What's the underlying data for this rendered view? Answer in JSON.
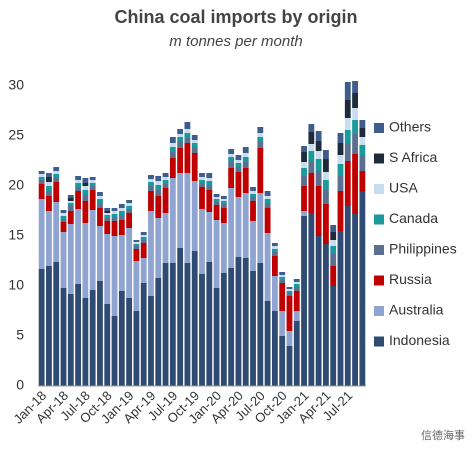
{
  "chart_data": {
    "type": "stacked_bar",
    "title": "China coal imports by origin",
    "subtitle": "m tonnes per month",
    "watermark": "信德海事",
    "categories": [
      "Jan-18",
      null,
      null,
      "Apr-18",
      null,
      null,
      "Jul-18",
      null,
      null,
      "Oct-18",
      null,
      null,
      "Jan-19",
      null,
      null,
      "Apr-19",
      null,
      null,
      "Jul-19",
      null,
      null,
      "Oct-19",
      null,
      null,
      "Jan-20",
      null,
      null,
      "Apr-20",
      null,
      null,
      "Jul-20",
      null,
      null,
      "Oct-20",
      null,
      null,
      "Jan-21",
      null,
      null,
      "Apr-21",
      null,
      null,
      "Jul-21",
      null,
      null
    ],
    "series": [
      {
        "name": "Indonesia",
        "color": "#2f4b73",
        "values": [
          11.7,
          12.0,
          12.4,
          9.8,
          9.2,
          10.2,
          8.8,
          9.6,
          10.5,
          8.2,
          7.0,
          9.5,
          8.8,
          7.5,
          10.3,
          9.0,
          10.8,
          12.3,
          12.3,
          13.8,
          12.3,
          13.5,
          11.2,
          12.4,
          9.8,
          11.3,
          11.8,
          12.9,
          12.8,
          11.5,
          12.3,
          8.5,
          7.5,
          5.0,
          4.0,
          6.5,
          17.0,
          17.3,
          15.0,
          14.2,
          10.0,
          15.5,
          18.0,
          17.2,
          19.5
        ]
      },
      {
        "name": "Australia",
        "color": "#8fa4d0",
        "values": [
          7.0,
          5.5,
          6.0,
          5.6,
          7.0,
          7.5,
          7.5,
          8.0,
          5.5,
          7.0,
          8.0,
          5.6,
          7.0,
          5.0,
          2.5,
          8.5,
          6.0,
          5.0,
          8.5,
          7.5,
          9.0,
          7.0,
          6.5,
          5.0,
          6.8,
          5.0,
          8.0,
          6.0,
          6.5,
          5.0,
          7.0,
          6.8,
          3.5,
          2.5,
          1.5,
          1.0,
          0.5,
          0,
          0,
          0,
          0,
          0,
          0,
          0,
          0
        ]
      },
      {
        "name": "Russia",
        "color": "#c00000",
        "values": [
          1.5,
          1.5,
          2.0,
          1.0,
          1.3,
          1.8,
          2.2,
          2.0,
          1.8,
          1.3,
          1.5,
          1.5,
          1.5,
          1.2,
          1.5,
          2.0,
          2.2,
          2.5,
          2.0,
          2.5,
          3.0,
          2.8,
          2.2,
          2.2,
          1.5,
          1.5,
          2.0,
          2.5,
          2.5,
          2.0,
          4.5,
          2.5,
          2.0,
          2.8,
          3.5,
          2.0,
          2.5,
          4.0,
          5.0,
          4.0,
          2.0,
          4.0,
          4.5,
          6.0,
          2.0
        ]
      },
      {
        "name": "Philippines",
        "color": "#5b7090",
        "values": [
          0.4,
          0.5,
          0.4,
          0.3,
          0.5,
          0.4,
          0.6,
          0.4,
          0.5,
          0.3,
          0.4,
          0.5,
          0.4,
          0.3,
          0.3,
          0.5,
          0.6,
          0.4,
          0.6,
          0.7,
          0.5,
          0.6,
          0.4,
          0.5,
          0.3,
          0.4,
          0.6,
          0.5,
          0.6,
          0.4,
          0.6,
          0.5,
          0.4,
          0.3,
          0.3,
          0.4,
          1.0,
          1.2,
          1.5,
          1.4,
          1.2,
          1.5,
          1.8,
          2.0,
          1.6
        ]
      },
      {
        "name": "Canada",
        "color": "#1a9a9a",
        "values": [
          0.3,
          0.5,
          0.4,
          0.3,
          0.3,
          0.4,
          0.5,
          0.3,
          0.4,
          0.3,
          0.3,
          0.4,
          0.3,
          0.2,
          0.3,
          0.4,
          0.5,
          0.4,
          0.5,
          0.4,
          0.5,
          0.4,
          0.3,
          0.4,
          0.3,
          0.3,
          0.5,
          0.4,
          0.5,
          0.3,
          0.5,
          0.4,
          0.3,
          0.3,
          0.2,
          0.3,
          0.8,
          1.0,
          1.2,
          1.0,
          0.8,
          1.2,
          1.3,
          1.4,
          1.0
        ]
      },
      {
        "name": "USA",
        "color": "#c9ddf1",
        "values": [
          0.3,
          0.4,
          0.3,
          0.3,
          0.2,
          0.3,
          0.4,
          0.3,
          0.3,
          0.2,
          0.3,
          0.3,
          0.3,
          0.2,
          0.2,
          0.3,
          0.4,
          0.3,
          0.4,
          0.3,
          0.4,
          0.3,
          0.3,
          0.3,
          0.2,
          0.2,
          0.3,
          0.3,
          0.4,
          0.3,
          0.4,
          0.3,
          0.3,
          0.2,
          0.2,
          0.2,
          0.6,
          0.7,
          0.8,
          0.8,
          0.6,
          0.9,
          1.2,
          1.2,
          0.8
        ]
      },
      {
        "name": "S Africa",
        "color": "#1d2b3b",
        "values": [
          0,
          0.5,
          0,
          0,
          0.3,
          0,
          0.3,
          0,
          0,
          0.2,
          0,
          0,
          0,
          0,
          0,
          0,
          0,
          0,
          0,
          0,
          0,
          0,
          0,
          0,
          0,
          0,
          0,
          0,
          0,
          0,
          0,
          0,
          0,
          0,
          0,
          0,
          1.0,
          1.2,
          1.0,
          1.3,
          0.8,
          1.2,
          1.8,
          1.5,
          0.9
        ]
      },
      {
        "name": "Others",
        "color": "#3e5c8c",
        "values": [
          0.3,
          0.4,
          0.4,
          0.3,
          0.3,
          0.4,
          0.5,
          0.3,
          0.4,
          0.3,
          0.3,
          0.4,
          0.3,
          0.2,
          0.3,
          0.4,
          0.5,
          0.4,
          0.6,
          0.5,
          0.7,
          0.5,
          0.4,
          0.5,
          0.3,
          0.3,
          0.5,
          0.5,
          0.6,
          0.4,
          0.6,
          0.5,
          0.3,
          0.3,
          0.2,
          0.3,
          0.6,
          0.8,
          1.0,
          0.9,
          0.7,
          1.0,
          1.8,
          1.2,
          0.8
        ]
      }
    ],
    "ylim": [
      0,
      31
    ],
    "yticks": [
      0,
      5,
      10,
      15,
      20,
      25,
      30
    ],
    "grid": false,
    "legend": "right"
  }
}
